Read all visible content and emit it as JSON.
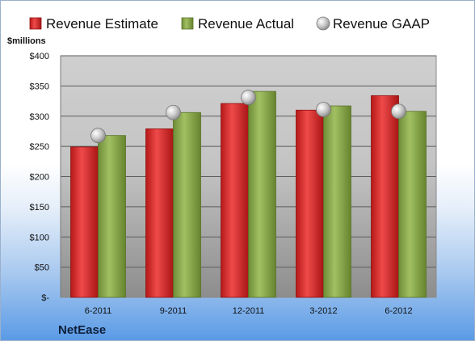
{
  "chart_data": {
    "type": "bar",
    "company": "NetEase",
    "unit_label": "$millions",
    "categories": [
      "6-2011",
      "9-2011",
      "12-2011",
      "3-2012",
      "6-2012"
    ],
    "series": [
      {
        "name": "Revenue Estimate",
        "kind": "bar",
        "color": "#d42a2a",
        "values": [
          249,
          279,
          321,
          310,
          334
        ]
      },
      {
        "name": "Revenue Actual",
        "kind": "bar",
        "color": "#86a64c",
        "values": [
          268,
          306,
          341,
          317,
          308
        ]
      },
      {
        "name": "Revenue GAAP",
        "kind": "marker",
        "color": "#c9c9c9",
        "values": [
          268,
          306,
          331,
          311,
          308
        ]
      }
    ],
    "y_ticks": [
      {
        "value": 0,
        "label": "$-"
      },
      {
        "value": 50,
        "label": "$50"
      },
      {
        "value": 100,
        "label": "$100"
      },
      {
        "value": 150,
        "label": "$150"
      },
      {
        "value": 200,
        "label": "$200"
      },
      {
        "value": 250,
        "label": "$250"
      },
      {
        "value": 300,
        "label": "$300"
      },
      {
        "value": 350,
        "label": "$350"
      },
      {
        "value": 400,
        "label": "$400"
      }
    ],
    "ylim": [
      0,
      400
    ],
    "grid": true,
    "legend_position": "top"
  }
}
